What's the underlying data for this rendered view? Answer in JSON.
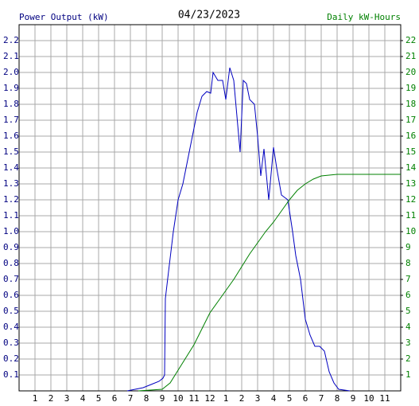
{
  "chart_data": {
    "type": "line",
    "title": "04/23/2023",
    "ylabel": "Power Output (kW)",
    "y2label": "Daily kW-Hours",
    "xlim": [
      0,
      24
    ],
    "xticks": [
      1,
      2,
      3,
      4,
      5,
      6,
      7,
      8,
      9,
      10,
      11,
      12,
      {
        "value": 13,
        "label": "1"
      },
      {
        "value": 14,
        "label": "2"
      },
      {
        "value": 15,
        "label": "3"
      },
      {
        "value": 16,
        "label": "4"
      },
      {
        "value": 17,
        "label": "5"
      },
      {
        "value": 18,
        "label": "6"
      },
      {
        "value": 19,
        "label": "7"
      },
      {
        "value": 20,
        "label": "8"
      },
      {
        "value": 21,
        "label": "9"
      },
      {
        "value": 22,
        "label": "10"
      },
      {
        "value": 23,
        "label": "11"
      }
    ],
    "ylim": [
      0,
      2.3
    ],
    "yticks": [
      0.1,
      0.2,
      0.3,
      0.4,
      0.5,
      0.6,
      0.7,
      0.8,
      0.9,
      {
        "value": 1,
        "label": "1.0"
      },
      1.1,
      1.2,
      1.3,
      1.4,
      1.5,
      1.6,
      1.7,
      1.8,
      1.9,
      {
        "value": 2,
        "label": "2.0"
      },
      2.1,
      2.2
    ],
    "y2lim": [
      0,
      23
    ],
    "y2ticks": [
      1,
      2,
      3,
      4,
      5,
      6,
      7,
      8,
      9,
      10,
      11,
      12,
      13,
      14,
      15,
      16,
      17,
      18,
      19,
      20,
      21,
      22
    ],
    "grid": true,
    "ycolor": "#000080",
    "y2color": "#008000",
    "series": [
      {
        "color": "#0000c0",
        "x": [
          6.8,
          7.8,
          8.3,
          8.8,
          9.05,
          9.15,
          9.2,
          9.4,
          9.7,
          10.0,
          10.3,
          10.6,
          10.9,
          11.2,
          11.5,
          11.8,
          12.05,
          12.2,
          12.5,
          12.8,
          13.0,
          13.25,
          13.5,
          13.9,
          14.1,
          14.3,
          14.5,
          14.8,
          15.0,
          15.2,
          15.4,
          15.7,
          16.0,
          16.2,
          16.5,
          16.9,
          17.2,
          17.4,
          17.7,
          18.0,
          18.3,
          18.6,
          18.9,
          19.2,
          19.5,
          19.8,
          20.1,
          20.8
        ],
        "values": [
          0,
          0.02,
          0.04,
          0.06,
          0.08,
          0.1,
          0.58,
          0.75,
          1.0,
          1.2,
          1.3,
          1.45,
          1.6,
          1.75,
          1.85,
          1.88,
          1.87,
          2.0,
          1.95,
          1.95,
          1.83,
          2.03,
          1.95,
          1.5,
          1.95,
          1.93,
          1.83,
          1.8,
          1.6,
          1.35,
          1.52,
          1.2,
          1.53,
          1.4,
          1.23,
          1.2,
          1.0,
          0.85,
          0.7,
          0.45,
          0.35,
          0.28,
          0.28,
          0.25,
          0.12,
          0.05,
          0.01,
          0
        ]
      },
      {
        "color": "#008000",
        "axis": "y2",
        "x": [
          7.5,
          9.0,
          9.5,
          10.0,
          10.5,
          11.0,
          11.5,
          12.0,
          12.5,
          13.0,
          13.5,
          14.0,
          14.5,
          15.0,
          15.5,
          16.0,
          16.5,
          17.0,
          17.5,
          18.0,
          18.5,
          19.0,
          19.5,
          20.0,
          24.0
        ],
        "values": [
          0,
          0.1,
          0.5,
          1.3,
          2.1,
          2.9,
          3.9,
          4.9,
          5.6,
          6.3,
          7.0,
          7.8,
          8.6,
          9.3,
          10.0,
          10.6,
          11.3,
          12.0,
          12.6,
          13.0,
          13.3,
          13.5,
          13.55,
          13.6,
          13.6
        ]
      }
    ]
  }
}
